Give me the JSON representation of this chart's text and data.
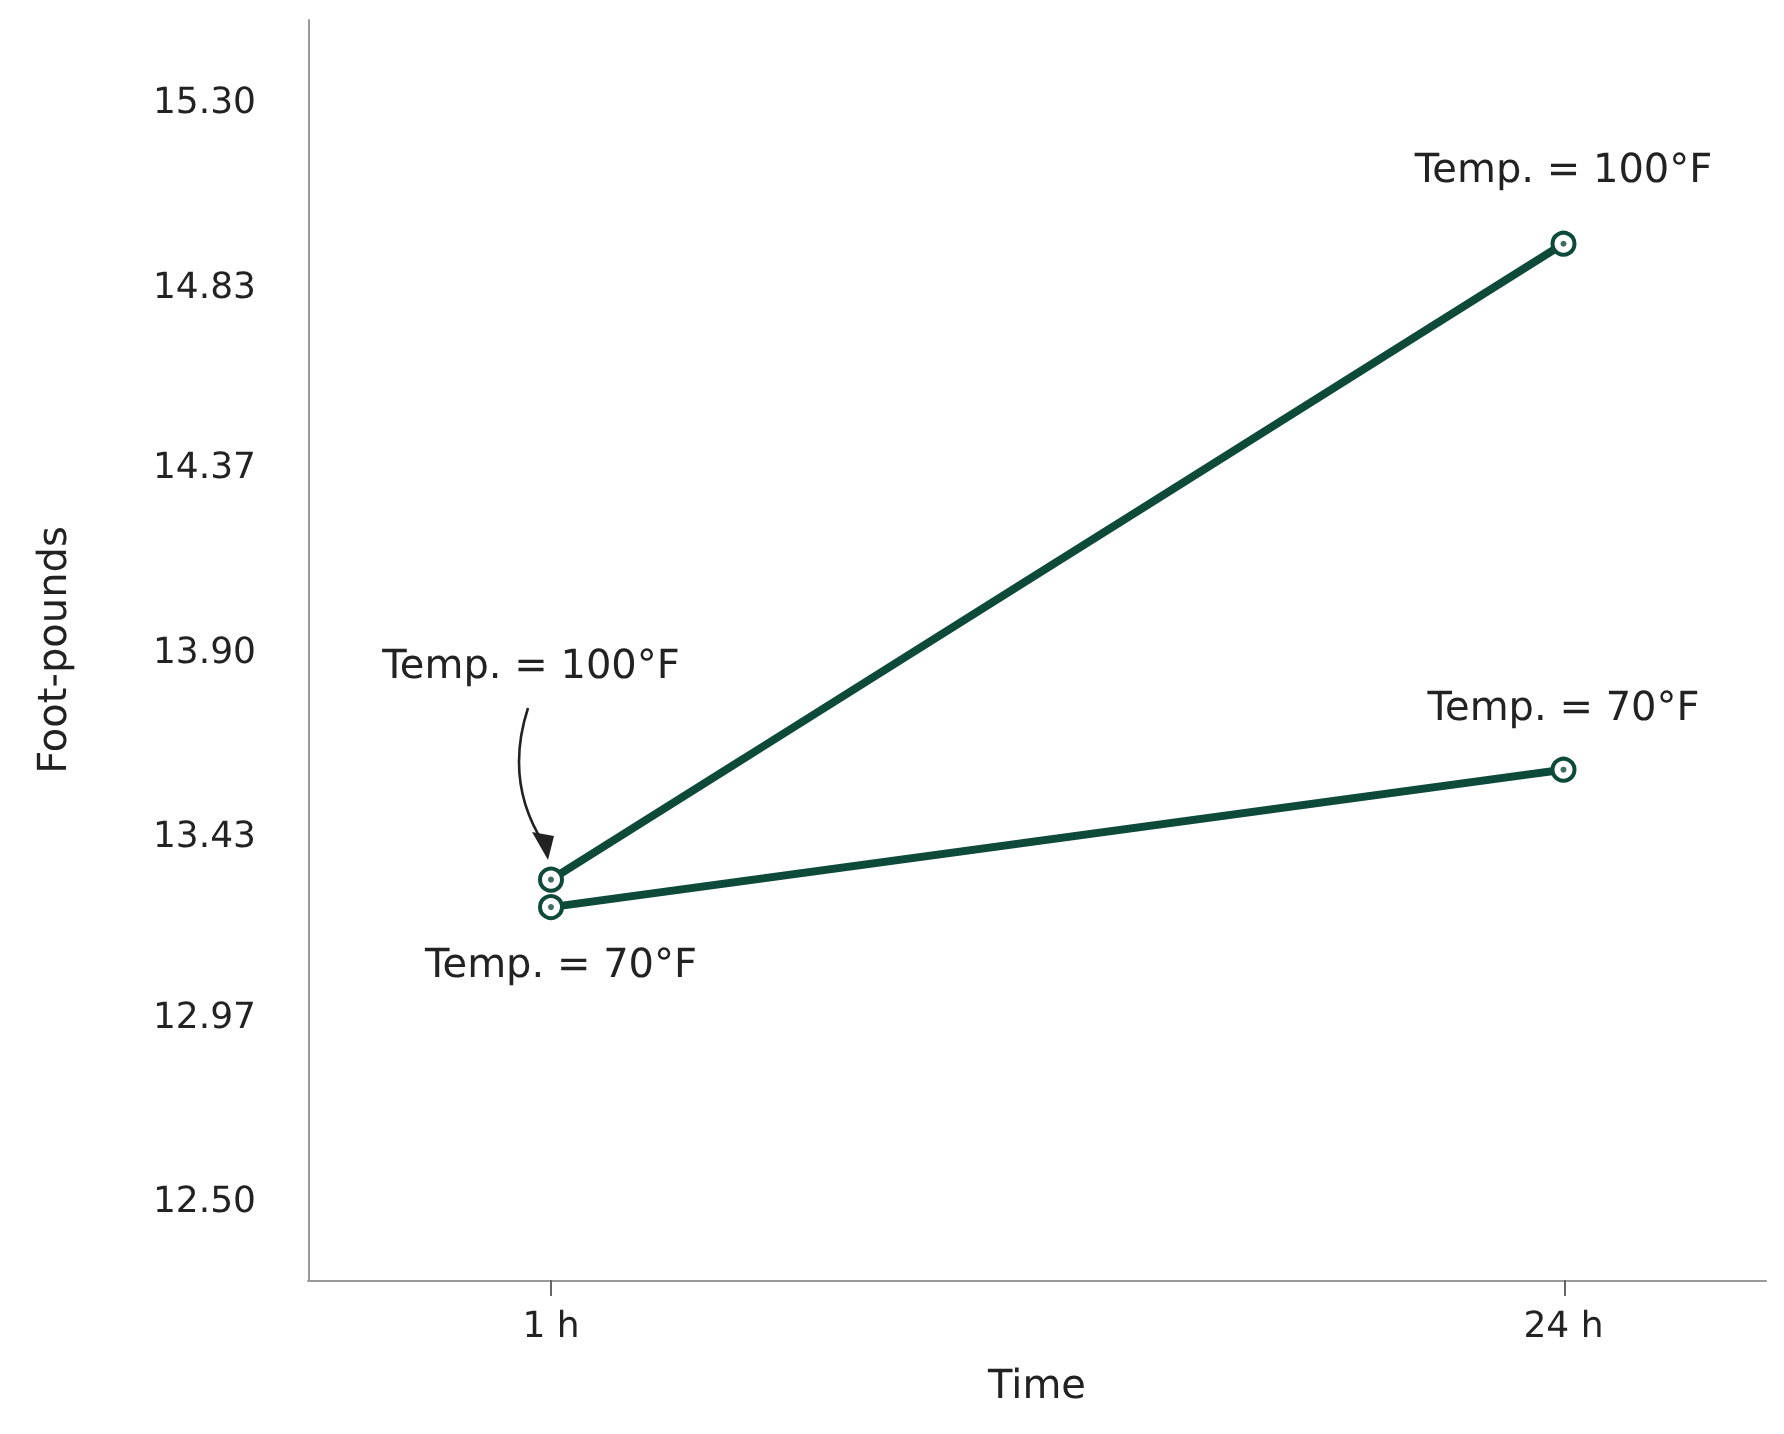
{
  "chart_data": {
    "type": "line",
    "xlabel": "Time",
    "ylabel": "Foot-pounds",
    "categories": [
      "1 h",
      "24 h"
    ],
    "series": [
      {
        "color": "#0d4a3a",
        "values": [
          13.32,
          14.94
        ]
      },
      {
        "color": "#0d4a3a",
        "values": [
          13.25,
          13.6
        ]
      }
    ],
    "ylim": [
      12.3,
      15.51
    ],
    "yticks": [
      {
        "value": 12.5,
        "label": "12.50"
      },
      12.97,
      13.43,
      {
        "value": 13.9,
        "label": "13.90"
      },
      14.37,
      14.83,
      {
        "value": 15.3,
        "label": "15.30"
      }
    ],
    "marker": "circle",
    "line_style": "solid",
    "grid": false,
    "annotations": [
      "Temp. = 100°F",
      {
        "text": "Temp. = 70°F",
        "x": "1 h",
        "y": 13.25
      },
      {
        "text": "Temp. = 100°F",
        "x": "24 h",
        "y": 14.94
      },
      {
        "text": "Temp. = 70°F",
        "x": "24 h",
        "y": 13.6
      }
    ]
  }
}
